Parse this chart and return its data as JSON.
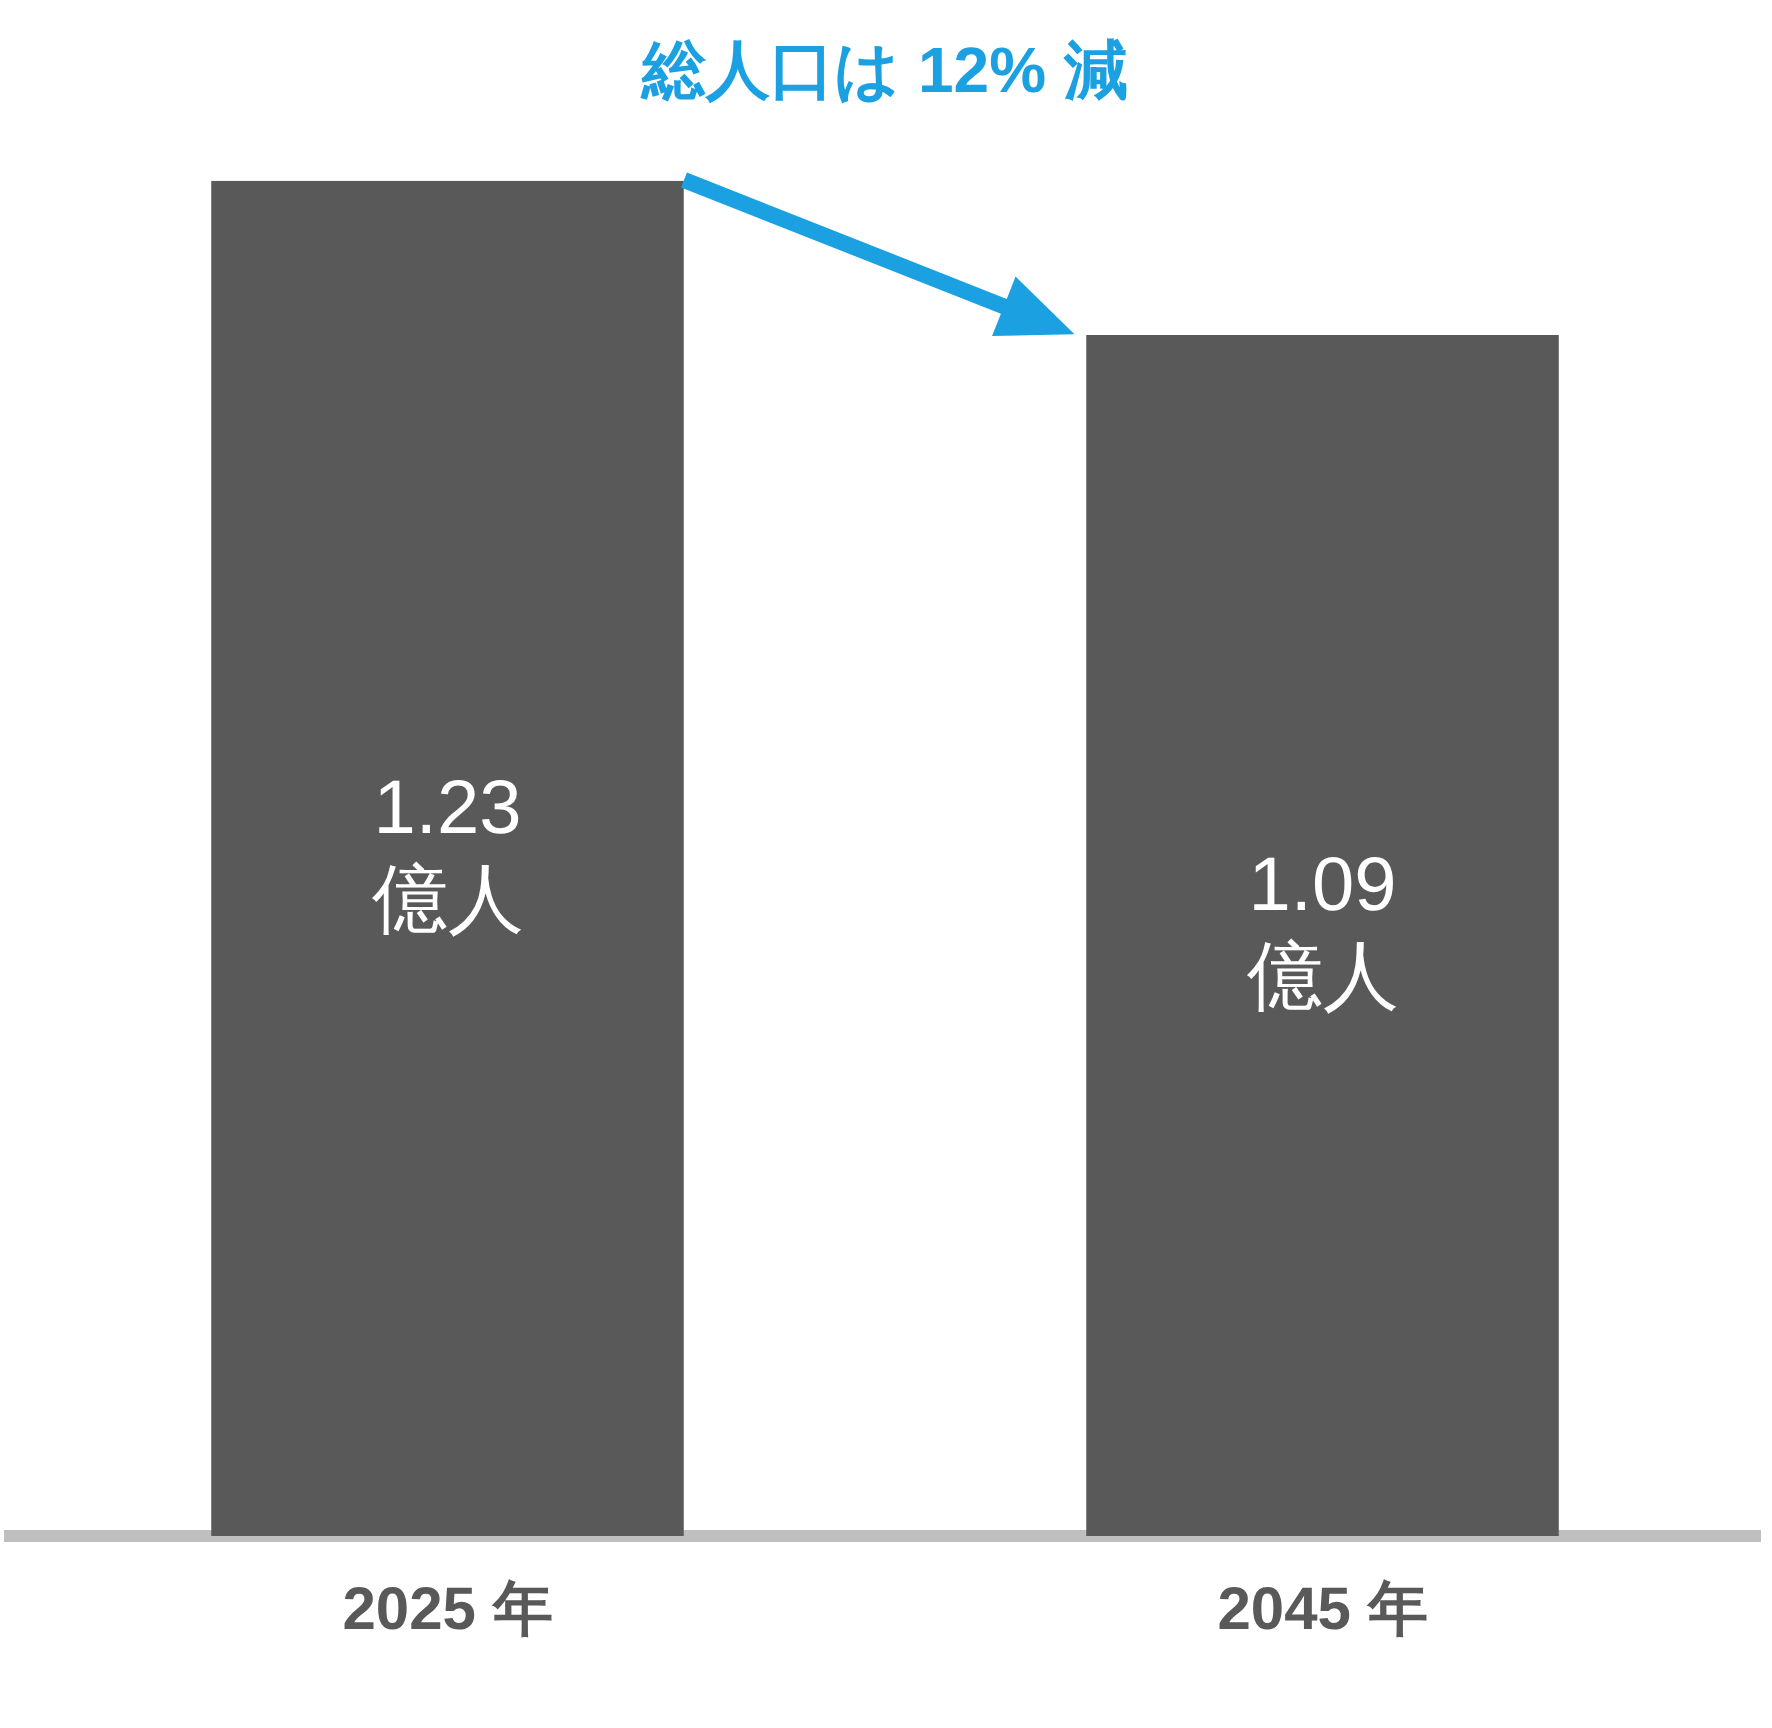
{
  "chart_data": {
    "type": "bar",
    "title": "総人口は 12% 減",
    "categories": [
      "2025 年",
      "2045 年"
    ],
    "values": [
      1.23,
      1.09
    ],
    "color": "#595959",
    "value_labels": [
      "1.23 億人",
      "1.09 億人"
    ],
    "ylim": [
      0,
      1.23
    ],
    "tick_labels": "x",
    "grid": false,
    "legend": false
  }
}
